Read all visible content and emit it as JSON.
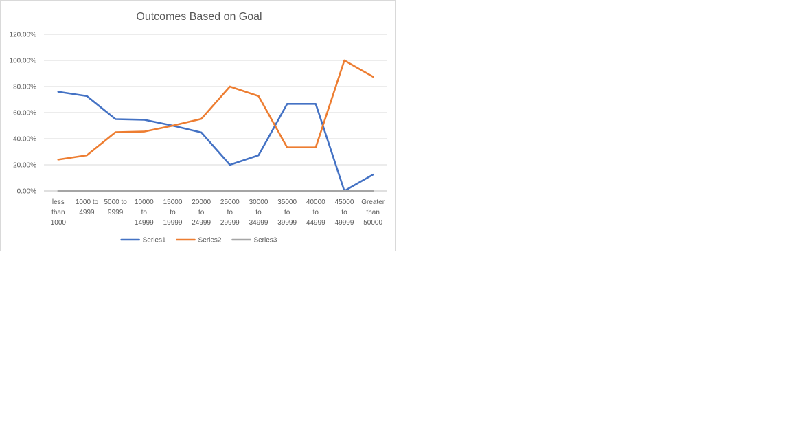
{
  "chart_data": {
    "type": "line",
    "title": "Outcomes Based on Goal",
    "xlabel": "",
    "ylabel": "",
    "categories": [
      [
        "less",
        "than",
        "1000"
      ],
      [
        "1000 to",
        "4999"
      ],
      [
        "5000 to",
        "9999"
      ],
      [
        "10000",
        "to",
        "14999"
      ],
      [
        "15000",
        "to",
        "19999"
      ],
      [
        "20000",
        "to",
        "24999"
      ],
      [
        "25000",
        "to",
        "29999"
      ],
      [
        "30000",
        "to",
        "34999"
      ],
      [
        "35000",
        "to",
        "39999"
      ],
      [
        "40000",
        "to",
        "44999"
      ],
      [
        "45000",
        "to",
        "49999"
      ],
      [
        "Greater",
        "than",
        "50000"
      ]
    ],
    "y_ticks": [
      "0.00%",
      "20.00%",
      "40.00%",
      "60.00%",
      "80.00%",
      "100.00%",
      "120.00%"
    ],
    "ylim": [
      0,
      120
    ],
    "y_unit": "percent",
    "grid": true,
    "legend": "bottom",
    "series": [
      {
        "name": "Series1",
        "color": "#4472c4",
        "values": [
          76,
          72.7,
          55,
          54.5,
          50,
          44.8,
          20,
          27.3,
          66.7,
          66.7,
          0,
          12.5
        ]
      },
      {
        "name": "Series2",
        "color": "#ed7d31",
        "values": [
          24,
          27.3,
          45,
          45.5,
          50,
          55.2,
          80,
          72.7,
          33.3,
          33.3,
          100,
          87.5
        ]
      },
      {
        "name": "Series3",
        "color": "#a5a5a5",
        "values": [
          0,
          0,
          0,
          0,
          0,
          0,
          0,
          0,
          0,
          0,
          0,
          0
        ]
      }
    ]
  }
}
